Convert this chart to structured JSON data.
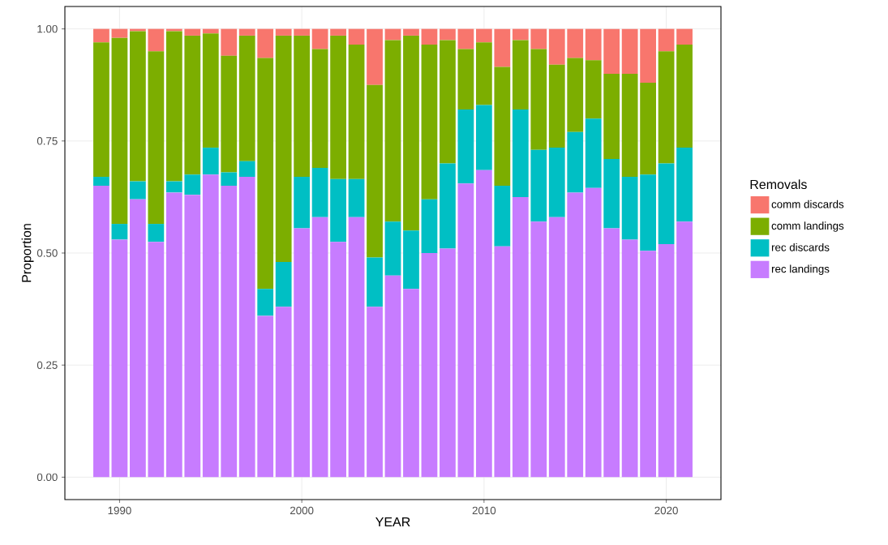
{
  "chart_data": {
    "type": "bar",
    "stacked": true,
    "xlabel": "YEAR",
    "ylabel": "Proportion",
    "legend_title": "Removals",
    "legend": "right",
    "grid": true,
    "x": [
      1989,
      1990,
      1991,
      1992,
      1993,
      1994,
      1995,
      1996,
      1997,
      1998,
      1999,
      2000,
      2001,
      2002,
      2003,
      2004,
      2005,
      2006,
      2007,
      2008,
      2009,
      2010,
      2011,
      2012,
      2013,
      2014,
      2015,
      2016,
      2017,
      2018,
      2019,
      2020,
      2021
    ],
    "xlim": [
      1987,
      2023
    ],
    "xticks": [
      1990,
      2000,
      2010,
      2020
    ],
    "ylim": [
      -0.05,
      1.05
    ],
    "yticks": [
      {
        "value": 0,
        "label": "0.00"
      },
      {
        "value": 0.25,
        "label": "0.25"
      },
      {
        "value": 0.5,
        "label": "0.50"
      },
      {
        "value": 0.75,
        "label": "0.75"
      },
      {
        "value": 1,
        "label": "1.00"
      }
    ],
    "series": [
      {
        "name": "rec landings",
        "color": "#c77cff",
        "values": [
          0.65,
          0.53,
          0.62,
          0.525,
          0.635,
          0.63,
          0.675,
          0.65,
          0.67,
          0.36,
          0.38,
          0.555,
          0.58,
          0.525,
          0.58,
          0.38,
          0.45,
          0.42,
          0.5,
          0.51,
          0.655,
          0.685,
          0.515,
          0.625,
          0.57,
          0.58,
          0.635,
          0.645,
          0.555,
          0.53,
          0.505,
          0.52,
          0.57
        ]
      },
      {
        "name": "rec discards",
        "color": "#00bfc4",
        "values": [
          0.02,
          0.035,
          0.04,
          0.04,
          0.025,
          0.045,
          0.06,
          0.03,
          0.035,
          0.06,
          0.1,
          0.115,
          0.11,
          0.14,
          0.085,
          0.11,
          0.12,
          0.13,
          0.12,
          0.19,
          0.165,
          0.145,
          0.135,
          0.195,
          0.16,
          0.155,
          0.135,
          0.155,
          0.155,
          0.14,
          0.17,
          0.18,
          0.165
        ]
      },
      {
        "name": "comm landings",
        "color": "#7cae00",
        "values": [
          0.3,
          0.415,
          0.335,
          0.385,
          0.335,
          0.31,
          0.255,
          0.26,
          0.28,
          0.515,
          0.505,
          0.315,
          0.265,
          0.32,
          0.3,
          0.385,
          0.405,
          0.435,
          0.345,
          0.275,
          0.135,
          0.14,
          0.265,
          0.155,
          0.225,
          0.185,
          0.165,
          0.13,
          0.19,
          0.23,
          0.205,
          0.25,
          0.23
        ]
      },
      {
        "name": "comm discards",
        "color": "#f8766d",
        "values": [
          0.03,
          0.02,
          0.005,
          0.05,
          0.005,
          0.015,
          0.01,
          0.06,
          0.015,
          0.065,
          0.015,
          0.015,
          0.045,
          0.015,
          0.035,
          0.125,
          0.025,
          0.015,
          0.035,
          0.025,
          0.045,
          0.03,
          0.085,
          0.025,
          0.045,
          0.08,
          0.065,
          0.07,
          0.1,
          0.1,
          0.12,
          0.05,
          0.035
        ]
      }
    ]
  }
}
